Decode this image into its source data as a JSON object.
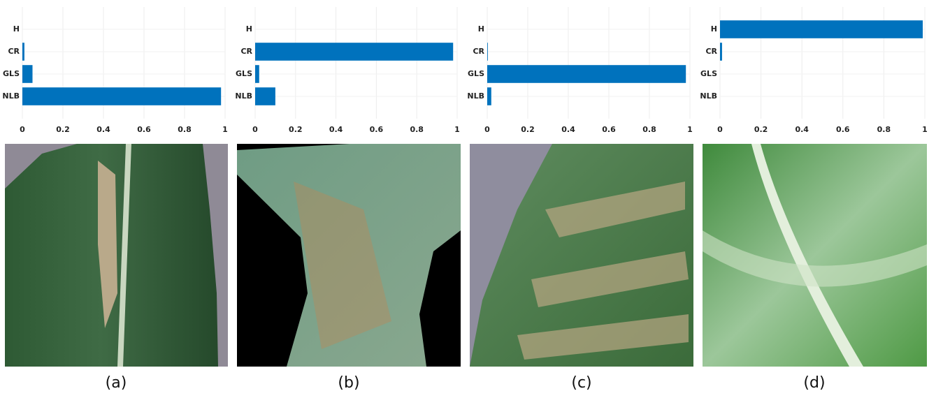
{
  "chart_data": [
    {
      "type": "bar",
      "orientation": "horizontal",
      "categories": [
        "H",
        "CR",
        "GLS",
        "NLB"
      ],
      "values": [
        0,
        0.01,
        0.05,
        0.98
      ],
      "color": "#0072bd",
      "xlim": [
        0,
        1
      ],
      "xticks": [
        0,
        0.2,
        0.4,
        0.6,
        0.8,
        1
      ],
      "grid": true
    },
    {
      "type": "bar",
      "orientation": "horizontal",
      "categories": [
        "H",
        "CR",
        "GLS",
        "NLB"
      ],
      "values": [
        0,
        0.98,
        0.02,
        0.1
      ],
      "color": "#0072bd",
      "xlim": [
        0,
        1
      ],
      "xticks": [
        0,
        0.2,
        0.4,
        0.6,
        0.8,
        1
      ],
      "grid": true
    },
    {
      "type": "bar",
      "orientation": "horizontal",
      "categories": [
        "H",
        "CR",
        "GLS",
        "NLB"
      ],
      "values": [
        0,
        0.003,
        0.98,
        0.02
      ],
      "color": "#0072bd",
      "xlim": [
        0,
        1
      ],
      "xticks": [
        0,
        0.2,
        0.4,
        0.6,
        0.8,
        1
      ],
      "grid": true
    },
    {
      "type": "bar",
      "orientation": "horizontal",
      "categories": [
        "H",
        "CR",
        "GLS",
        "NLB"
      ],
      "values": [
        0.99,
        0.01,
        0,
        0
      ],
      "color": "#0072bd",
      "xlim": [
        0,
        1
      ],
      "xticks": [
        0,
        0.2,
        0.4,
        0.6,
        0.8,
        1
      ],
      "grid": true
    }
  ],
  "captions": [
    "(a)",
    "(b)",
    "(c)",
    "(d)"
  ]
}
